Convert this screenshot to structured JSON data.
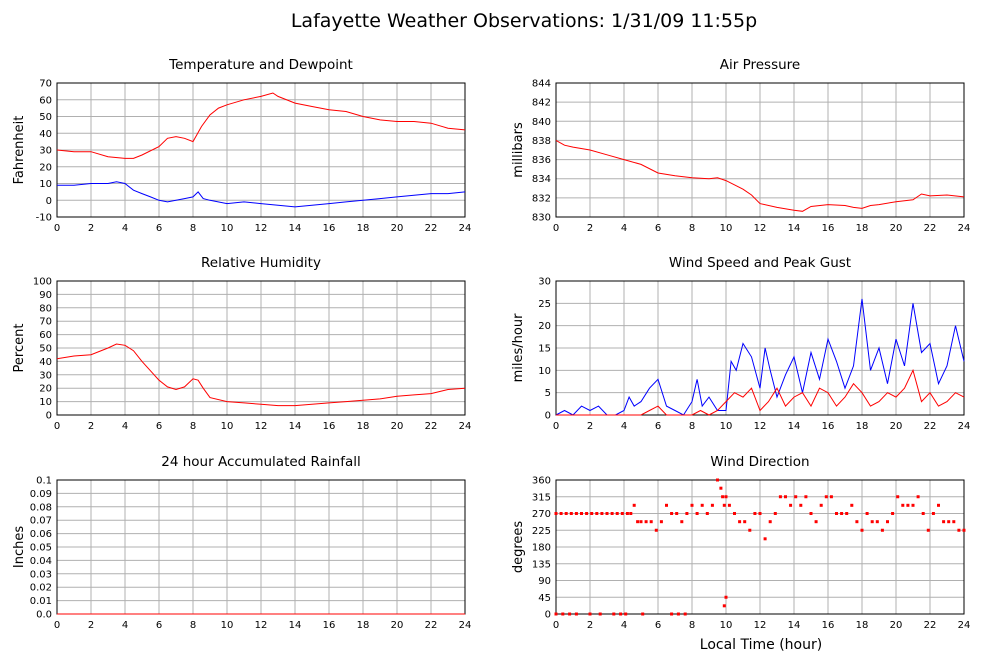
{
  "page_title": "Lafayette Weather Observations: 1/31/09 11:55p",
  "x_axis_label": "Local Time (hour)",
  "colors": {
    "red": "#ff0000",
    "blue": "#0000ff",
    "grid": "#b0b0b0"
  },
  "chart_data": [
    {
      "id": "temp",
      "type": "line",
      "title": "Temperature and Dewpoint",
      "ylabel": "Fahrenheit",
      "xlim": [
        0,
        24
      ],
      "ylim": [
        -10,
        70
      ],
      "xticks": [
        "0",
        "2",
        "4",
        "6",
        "8",
        "10",
        "12",
        "14",
        "16",
        "18",
        "20",
        "22",
        "24"
      ],
      "yticks": [
        "-10",
        "0",
        "10",
        "20",
        "30",
        "40",
        "50",
        "60",
        "70"
      ],
      "grid": true,
      "series": [
        {
          "color": "#ff0000",
          "x": [
            0,
            1,
            2,
            3,
            4,
            4.5,
            5,
            6,
            6.5,
            7,
            7.5,
            8,
            8.5,
            9,
            9.5,
            10,
            11,
            12,
            12.7,
            13,
            14,
            15,
            16,
            17,
            18,
            19,
            20,
            21,
            22,
            23,
            24
          ],
          "y": [
            30,
            29,
            29,
            26,
            25,
            25,
            27,
            32,
            37,
            38,
            37,
            35,
            44,
            51,
            55,
            57,
            60,
            62,
            64,
            62,
            58,
            56,
            54,
            53,
            50,
            48,
            47,
            47,
            46,
            43,
            42
          ]
        },
        {
          "color": "#0000ff",
          "x": [
            0,
            1,
            2,
            3,
            3.5,
            4,
            4.5,
            5,
            5.5,
            6,
            6.5,
            7,
            7.5,
            8,
            8.3,
            8.6,
            9,
            10,
            11,
            12,
            13,
            14,
            15,
            16,
            17,
            18,
            19,
            20,
            21,
            22,
            23,
            24
          ],
          "y": [
            9,
            9,
            10,
            10,
            11,
            10,
            6,
            4,
            2,
            0,
            -1,
            0,
            1,
            2,
            5,
            1,
            0,
            -2,
            -1,
            -2,
            -3,
            -4,
            -3,
            -2,
            -1,
            0,
            1,
            2,
            3,
            4,
            4,
            5
          ]
        }
      ]
    },
    {
      "id": "pressure",
      "type": "line",
      "title": "Air Pressure",
      "ylabel": "millibars",
      "xlim": [
        0,
        24
      ],
      "ylim": [
        830,
        844
      ],
      "xticks": [
        "0",
        "2",
        "4",
        "6",
        "8",
        "10",
        "12",
        "14",
        "16",
        "18",
        "20",
        "22",
        "24"
      ],
      "yticks": [
        "830",
        "832",
        "834",
        "836",
        "838",
        "840",
        "842",
        "844"
      ],
      "grid": true,
      "series": [
        {
          "color": "#ff0000",
          "x": [
            0,
            0.5,
            1,
            2,
            3,
            4,
            5,
            6,
            7,
            8,
            9,
            9.5,
            10,
            11,
            11.5,
            12,
            13,
            14,
            14.5,
            15,
            16,
            17,
            17.5,
            18,
            18.5,
            19,
            20,
            21,
            21.5,
            22,
            23,
            24
          ],
          "y": [
            838,
            837.5,
            837.3,
            837,
            836.5,
            836,
            835.5,
            834.6,
            834.3,
            834.1,
            834,
            834.1,
            833.8,
            832.9,
            832.3,
            831.4,
            831,
            830.7,
            830.6,
            831.1,
            831.3,
            831.2,
            831,
            830.9,
            831.2,
            831.3,
            831.6,
            831.8,
            832.4,
            832.2,
            832.3,
            832.1
          ]
        }
      ]
    },
    {
      "id": "humidity",
      "type": "line",
      "title": "Relative Humidity",
      "ylabel": "Percent",
      "xlim": [
        0,
        24
      ],
      "ylim": [
        0,
        100
      ],
      "xticks": [
        "0",
        "2",
        "4",
        "6",
        "8",
        "10",
        "12",
        "14",
        "16",
        "18",
        "20",
        "22",
        "24"
      ],
      "yticks": [
        "0",
        "10",
        "20",
        "30",
        "40",
        "50",
        "60",
        "70",
        "80",
        "90",
        "100"
      ],
      "grid": true,
      "series": [
        {
          "color": "#ff0000",
          "x": [
            0,
            0.5,
            1,
            2,
            3,
            3.5,
            4,
            4.5,
            5,
            5.5,
            6,
            6.5,
            7,
            7.5,
            8,
            8.3,
            8.6,
            9,
            10,
            11,
            12,
            13,
            14,
            15,
            16,
            17,
            18,
            19,
            20,
            21,
            22,
            23,
            24
          ],
          "y": [
            42,
            43,
            44,
            45,
            50,
            53,
            52,
            48,
            40,
            33,
            26,
            21,
            19,
            21,
            27,
            26,
            20,
            13,
            10,
            9,
            8,
            7,
            7,
            8,
            9,
            10,
            11,
            12,
            14,
            15,
            16,
            19,
            20
          ]
        }
      ]
    },
    {
      "id": "wind",
      "type": "line",
      "title": "Wind Speed and Peak Gust",
      "ylabel": "miles/hour",
      "xlim": [
        0,
        24
      ],
      "ylim": [
        0,
        30
      ],
      "xticks": [
        "0",
        "2",
        "4",
        "6",
        "8",
        "10",
        "12",
        "14",
        "16",
        "18",
        "20",
        "22",
        "24"
      ],
      "yticks": [
        "0",
        "5",
        "10",
        "15",
        "20",
        "25",
        "30"
      ],
      "grid": true,
      "series": [
        {
          "color": "#0000ff",
          "x": [
            0,
            0.5,
            1,
            1.5,
            2,
            2.5,
            3,
            3.5,
            4,
            4.3,
            4.6,
            5,
            5.5,
            6,
            6.5,
            7,
            7.5,
            8,
            8.3,
            8.6,
            9,
            9.5,
            10,
            10.3,
            10.6,
            11,
            11.5,
            12,
            12.3,
            12.6,
            13,
            13.5,
            14,
            14.5,
            15,
            15.5,
            16,
            16.5,
            17,
            17.5,
            18,
            18.5,
            19,
            19.5,
            20,
            20.5,
            21,
            21.5,
            22,
            22.5,
            23,
            23.5,
            24
          ],
          "y": [
            0,
            1,
            0,
            2,
            1,
            2,
            0,
            0,
            1,
            4,
            2,
            3,
            6,
            8,
            2,
            1,
            0,
            3,
            8,
            2,
            4,
            1,
            1,
            12,
            10,
            16,
            13,
            6,
            15,
            10,
            4,
            9,
            13,
            5,
            14,
            8,
            17,
            12,
            6,
            11,
            26,
            10,
            15,
            7,
            17,
            11,
            25,
            14,
            16,
            7,
            11,
            20,
            12
          ]
        },
        {
          "color": "#ff0000",
          "x": [
            0,
            1,
            2,
            3,
            4,
            4.5,
            5,
            5.5,
            6,
            6.5,
            7,
            8,
            8.5,
            9,
            9.5,
            10,
            10.5,
            11,
            11.5,
            12,
            12.5,
            13,
            13.5,
            14,
            14.5,
            15,
            15.5,
            16,
            16.5,
            17,
            17.5,
            18,
            18.5,
            19,
            19.5,
            20,
            20.5,
            21,
            21.5,
            22,
            22.5,
            23,
            23.5,
            24
          ],
          "y": [
            0,
            0,
            0,
            0,
            0,
            0,
            0,
            1,
            2,
            0,
            0,
            0,
            1,
            0,
            1,
            3,
            5,
            4,
            6,
            1,
            3,
            6,
            2,
            4,
            5,
            2,
            6,
            5,
            2,
            4,
            7,
            5,
            2,
            3,
            5,
            4,
            6,
            10,
            3,
            5,
            2,
            3,
            5,
            4
          ]
        }
      ]
    },
    {
      "id": "rain",
      "type": "line",
      "title": "24 hour Accumulated Rainfall",
      "ylabel": "Inches",
      "xlim": [
        0,
        24
      ],
      "ylim": [
        0,
        0.1
      ],
      "xticks": [
        "0",
        "2",
        "4",
        "6",
        "8",
        "10",
        "12",
        "14",
        "16",
        "18",
        "20",
        "22",
        "24"
      ],
      "yticks": [
        "0.0",
        "0.01",
        "0.02",
        "0.03",
        "0.04",
        "0.05",
        "0.06",
        "0.07",
        "0.08",
        "0.09",
        "0.1"
      ],
      "grid": true,
      "series": [
        {
          "color": "#ff0000",
          "x": [
            0,
            24
          ],
          "y": [
            0,
            0
          ]
        }
      ]
    },
    {
      "id": "direction",
      "type": "scatter",
      "title": "Wind Direction",
      "ylabel": "degrees",
      "xlim": [
        0,
        24
      ],
      "ylim": [
        0,
        360
      ],
      "xticks": [
        "0",
        "2",
        "4",
        "6",
        "8",
        "10",
        "12",
        "14",
        "16",
        "18",
        "20",
        "22",
        "24"
      ],
      "yticks": [
        "0",
        "45",
        "90",
        "135",
        "180",
        "225",
        "270",
        "315",
        "360"
      ],
      "grid": true,
      "series": [
        {
          "color": "#ff0000",
          "x": [
            0,
            0.3,
            0.6,
            0.9,
            1.2,
            1.5,
            1.8,
            2.1,
            2.4,
            2.7,
            3.0,
            3.3,
            3.6,
            3.9,
            4.2,
            4.4,
            4.6,
            4.8,
            5.0,
            5.3,
            5.6,
            5.9,
            6.2,
            6.5,
            6.8,
            7.1,
            7.4,
            7.7,
            8.0,
            8.3,
            8.6,
            8.9,
            9.2,
            9.5,
            9.7,
            9.8,
            9.9,
            10.0,
            10.2,
            10.5,
            10.8,
            11.1,
            11.4,
            11.7,
            12.0,
            12.3,
            12.6,
            12.9,
            13.2,
            13.5,
            13.8,
            14.1,
            14.4,
            14.7,
            15.0,
            15.3,
            15.6,
            15.9,
            16.2,
            16.5,
            16.8,
            17.1,
            17.4,
            17.7,
            18.0,
            18.3,
            18.6,
            18.9,
            19.2,
            19.5,
            19.8,
            20.1,
            20.4,
            20.7,
            21.0,
            21.3,
            21.6,
            21.9,
            22.2,
            22.5,
            22.8,
            23.1,
            23.4,
            23.7,
            24.0,
            0,
            0.4,
            0.8,
            1.2,
            2.0,
            2.6,
            3.4,
            3.8,
            4.1,
            5.1,
            6.8,
            7.2,
            7.6,
            9.9,
            10.0
          ],
          "y": [
            270,
            270,
            270,
            270,
            270,
            270,
            270,
            270,
            270,
            270,
            270,
            270,
            270,
            270,
            270,
            270,
            292,
            248,
            248,
            248,
            248,
            225,
            248,
            292,
            270,
            270,
            248,
            270,
            292,
            270,
            292,
            270,
            292,
            360,
            338,
            315,
            292,
            315,
            292,
            270,
            248,
            248,
            225,
            270,
            270,
            202,
            248,
            270,
            315,
            315,
            292,
            315,
            292,
            315,
            270,
            248,
            292,
            315,
            315,
            270,
            270,
            270,
            292,
            248,
            225,
            270,
            248,
            248,
            225,
            248,
            270,
            315,
            292,
            292,
            292,
            315,
            270,
            225,
            270,
            292,
            248,
            248,
            248,
            225,
            225,
            0,
            0,
            0,
            0,
            0,
            0,
            0,
            0,
            0,
            0,
            0,
            0,
            0,
            22,
            45
          ]
        }
      ]
    }
  ]
}
